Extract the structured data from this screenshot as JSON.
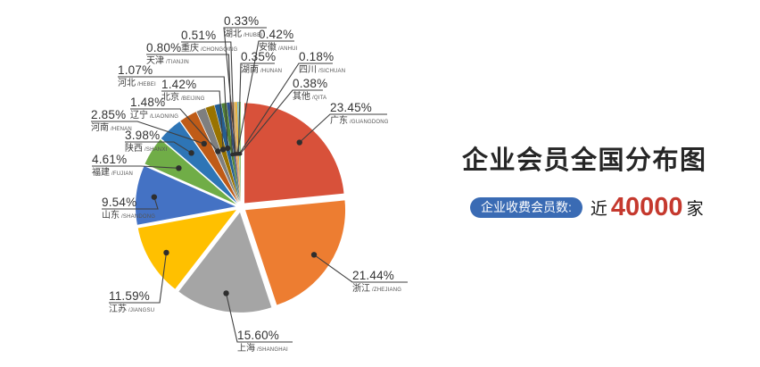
{
  "title": "企业会员全国分布图",
  "summary_badge": {
    "label": "企业收费会员数:",
    "prefix": "近",
    "count": "40000",
    "suffix": "家"
  },
  "colors": {
    "badge_bg": "#3a6bb4",
    "count_red": "#c5392e",
    "leader_line": "#3f3f3f",
    "leader_dot": "#2e2e2e",
    "title_text": "#262626"
  },
  "chart_data": {
    "type": "pie",
    "title": "企业会员全国分布图",
    "unit": "percent",
    "start_angle_deg": 0,
    "direction": "clockwise",
    "exploded": true,
    "legend_position": "none",
    "label_format": "percent above underline, region name with pinyin below",
    "regions": [
      {
        "name": "广东",
        "pinyin_display": "/GUANGDONG",
        "pct_label": "23.45%",
        "value": 23.45,
        "color": "#d8513a"
      },
      {
        "name": "浙江",
        "pinyin_display": "/ZHEJIANG",
        "pct_label": "21.44%",
        "value": 21.44,
        "color": "#ed7d31"
      },
      {
        "name": "上海",
        "pinyin_display": "/SHANGHAI",
        "pct_label": "15.60%",
        "value": 15.6,
        "color": "#a5a5a5"
      },
      {
        "name": "江苏",
        "pinyin_display": "/JIANGSU",
        "pct_label": "11.59%",
        "value": 11.59,
        "color": "#ffc000"
      },
      {
        "name": "山东",
        "pinyin_display": "/SHANDONG",
        "pct_label": "9.54%",
        "value": 9.54,
        "color": "#4472c4"
      },
      {
        "name": "福建",
        "pinyin_display": "/FUJIAN",
        "pct_label": "4.61%",
        "value": 4.61,
        "color": "#70ad47"
      },
      {
        "name": "陕西",
        "pinyin_display": "/SHANXI",
        "pct_label": "3.98%",
        "value": 3.98,
        "color": "#2e75b6"
      },
      {
        "name": "河南",
        "pinyin_display": "/HENAN",
        "pct_label": "2.85%",
        "value": 2.85,
        "color": "#bf5b17"
      },
      {
        "name": "辽宁",
        "pinyin_display": "/LIAONING",
        "pct_label": "1.48%",
        "value": 1.48,
        "color": "#7f7f7f"
      },
      {
        "name": "北京",
        "pinyin_display": "/BEIJING",
        "pct_label": "1.42%",
        "value": 1.42,
        "color": "#997300"
      },
      {
        "name": "河北",
        "pinyin_display": "/HEBEI",
        "pct_label": "1.07%",
        "value": 1.07,
        "color": "#255e91"
      },
      {
        "name": "天津",
        "pinyin_display": "/TIANJIN",
        "pct_label": "0.80%",
        "value": 0.8,
        "color": "#538135"
      },
      {
        "name": "重庆",
        "pinyin_display": "/CHONGQING",
        "pct_label": "0.51%",
        "value": 0.51,
        "color": "#31538f"
      },
      {
        "name": "湖北",
        "pinyin_display": "/HUBEI",
        "pct_label": "0.33%",
        "value": 0.33,
        "color": "#e8824d"
      },
      {
        "name": "安徽",
        "pinyin_display": "/ANHUI",
        "pct_label": "0.42%",
        "value": 0.42,
        "color": "#cfa972"
      },
      {
        "name": "湖南",
        "pinyin_display": "/HUNAN",
        "pct_label": "0.35%",
        "value": 0.35,
        "color": "#e6b33c"
      },
      {
        "name": "四川",
        "pinyin_display": "/SICHUAN",
        "pct_label": "0.18%",
        "value": 0.18,
        "color": "#7cafdd"
      },
      {
        "name": "其他",
        "pinyin_display": "/QITA",
        "pct_label": "0.38%",
        "value": 0.38,
        "color": "#8cc168"
      }
    ]
  }
}
